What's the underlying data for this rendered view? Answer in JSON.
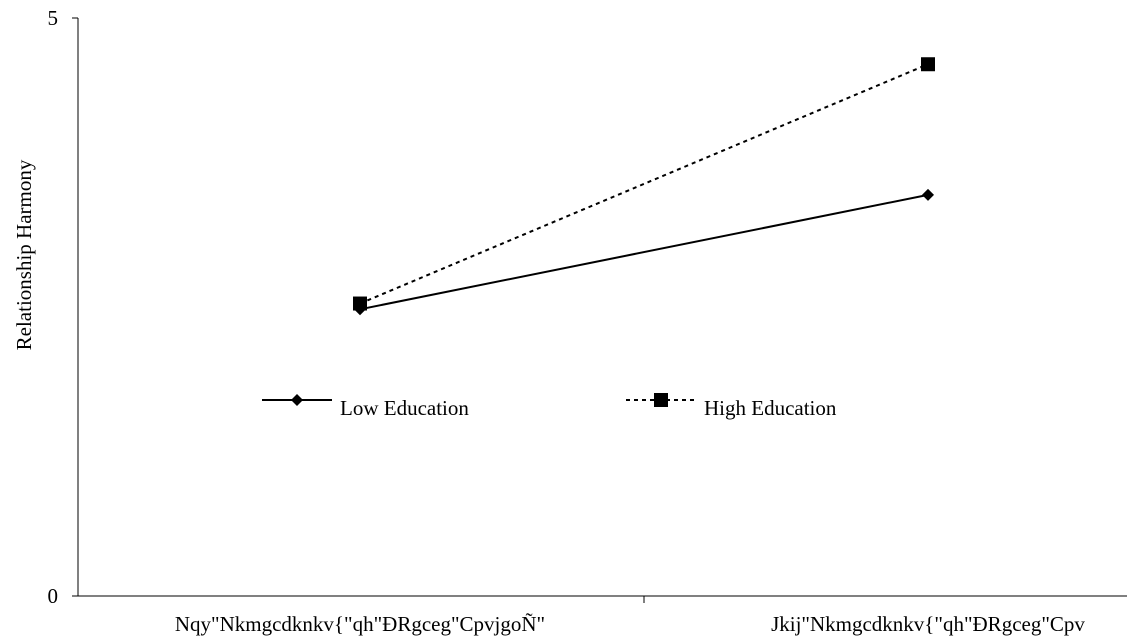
{
  "chart_data": {
    "type": "line",
    "title": "",
    "xlabel": "",
    "ylabel": "Relationship Harmony",
    "categories": [
      "Nqy\"Nkmgcdknkv{\"qh\"ÐRgceg\"CpvjgoÑ\"",
      "Jkij\"Nkmgcdknkv{\"qh\"ÐRgceg\"Cpv"
    ],
    "y_ticks": [
      "0",
      "5"
    ],
    "ylim": [
      0,
      5
    ],
    "grid": false,
    "legend_position": "center",
    "series": [
      {
        "name": "Low Education",
        "values": [
          2.48,
          3.47
        ],
        "line_style": "solid",
        "marker": "diamond",
        "color": "#000000"
      },
      {
        "name": "High Education",
        "values": [
          2.53,
          4.6
        ],
        "line_style": "dotted",
        "marker": "square",
        "color": "#000000"
      }
    ]
  }
}
